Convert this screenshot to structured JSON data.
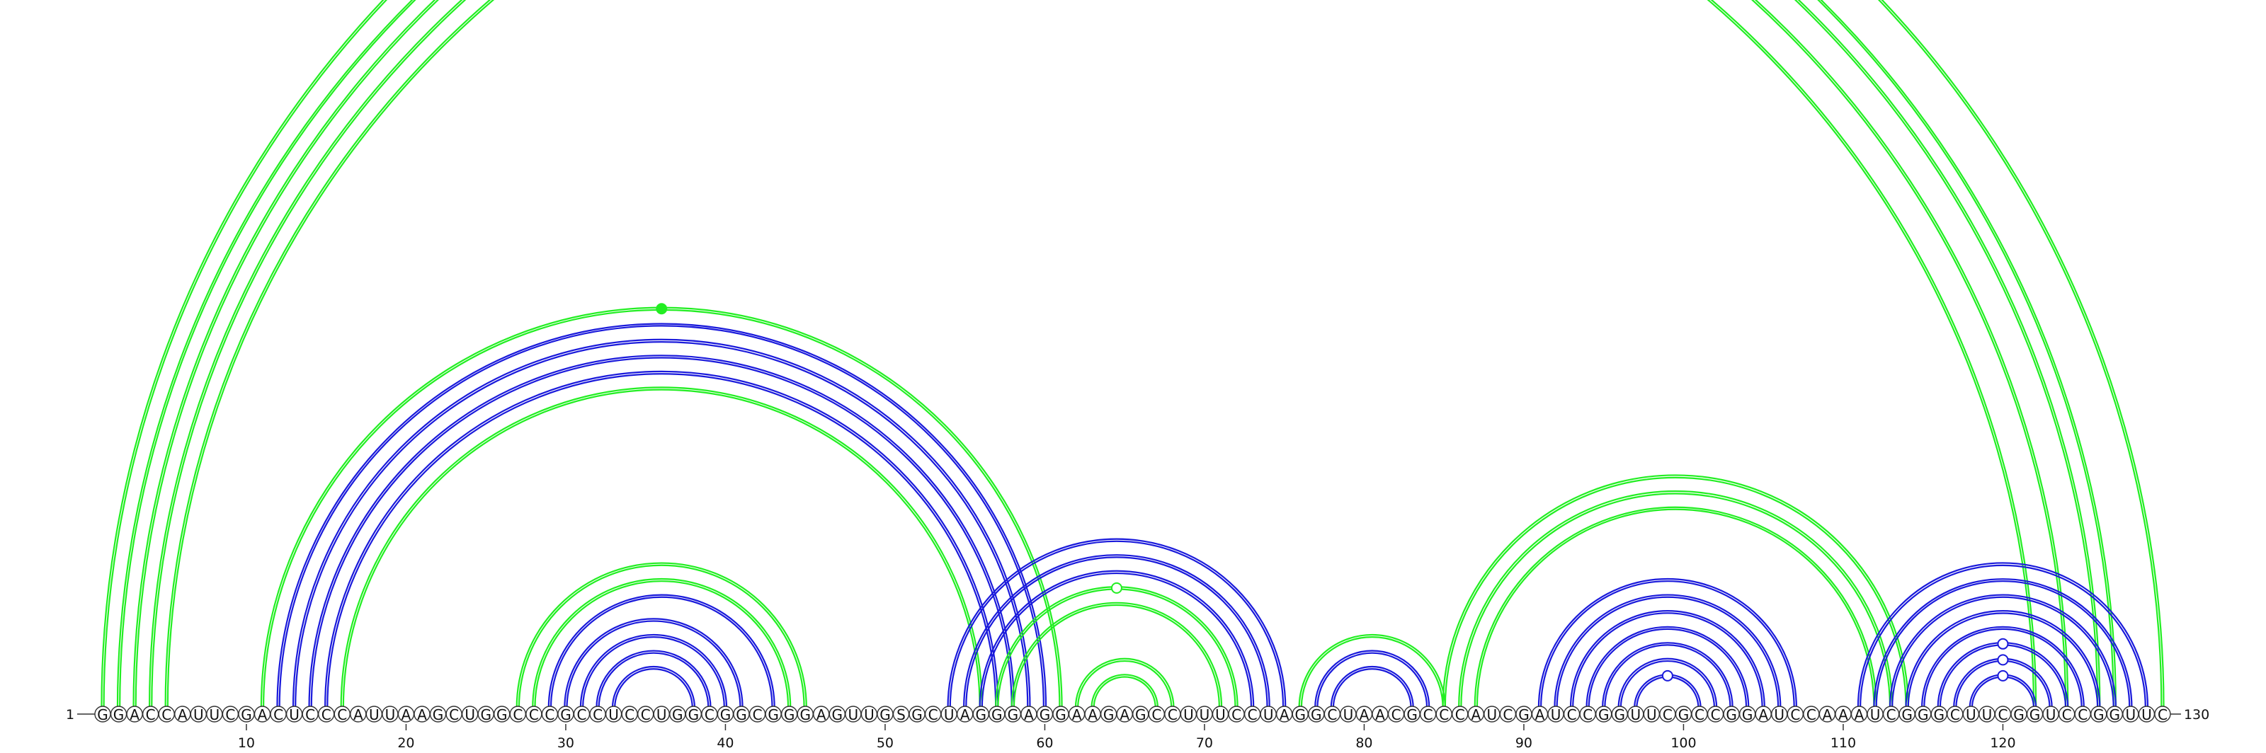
{
  "sequence": "GGACCAUUCGACUCCCAUUAAGCUGGCCCGCCUCCUGGCGGCGGGAGUUGSGCUAGGGAGGAAGAGCCUUUCCUAGGCUAACGCCCAUCGAUCCGGUUCGCCGGAUCCAAAUCGGGCUUCGGUCCGGUUC",
  "start_label": "1",
  "end_label": "130",
  "tick_labels": [
    "10",
    "20",
    "30",
    "40",
    "50",
    "60",
    "70",
    "80",
    "90",
    "100",
    "110",
    "120"
  ],
  "colors": {
    "green": "#22ee22",
    "blue": "#1a1adb"
  },
  "chart_data": {
    "type": "arc-diagram",
    "sequence_length": 130,
    "ticks": [
      10,
      20,
      30,
      40,
      50,
      60,
      70,
      80,
      90,
      100,
      110,
      120
    ],
    "pairs": [
      {
        "i": 1,
        "j": 130,
        "color": "green",
        "style": "double"
      },
      {
        "i": 2,
        "j": 127,
        "color": "green",
        "style": "double"
      },
      {
        "i": 3,
        "j": 126,
        "color": "green",
        "style": "double"
      },
      {
        "i": 4,
        "j": 124,
        "color": "green",
        "style": "double"
      },
      {
        "i": 5,
        "j": 122,
        "color": "green",
        "style": "double"
      },
      {
        "i": 11,
        "j": 61,
        "color": "green",
        "style": "double"
      },
      {
        "i": 12,
        "j": 60,
        "color": "blue",
        "style": "double"
      },
      {
        "i": 13,
        "j": 59,
        "color": "blue",
        "style": "double"
      },
      {
        "i": 14,
        "j": 58,
        "color": "blue",
        "style": "double"
      },
      {
        "i": 15,
        "j": 57,
        "color": "blue",
        "style": "double"
      },
      {
        "i": 16,
        "j": 56,
        "color": "green",
        "style": "double"
      },
      {
        "i": 27,
        "j": 45,
        "color": "green",
        "style": "double"
      },
      {
        "i": 28,
        "j": 44,
        "color": "green",
        "style": "double"
      },
      {
        "i": 29,
        "j": 43,
        "color": "blue",
        "style": "double"
      },
      {
        "i": 30,
        "j": 41,
        "color": "blue",
        "style": "double"
      },
      {
        "i": 31,
        "j": 40,
        "color": "blue",
        "style": "double"
      },
      {
        "i": 32,
        "j": 39,
        "color": "blue",
        "style": "double"
      },
      {
        "i": 33,
        "j": 38,
        "color": "blue",
        "style": "double"
      },
      {
        "i": 54,
        "j": 75,
        "color": "blue",
        "style": "double"
      },
      {
        "i": 55,
        "j": 74,
        "color": "blue",
        "style": "double"
      },
      {
        "i": 56,
        "j": 73,
        "color": "blue",
        "style": "double"
      },
      {
        "i": 57,
        "j": 72,
        "color": "green",
        "style": "double"
      },
      {
        "i": 58,
        "j": 71,
        "color": "green",
        "style": "double"
      },
      {
        "i": 62,
        "j": 68,
        "color": "green",
        "style": "double"
      },
      {
        "i": 63,
        "j": 67,
        "color": "green",
        "style": "double"
      },
      {
        "i": 76,
        "j": 85,
        "color": "green",
        "style": "double"
      },
      {
        "i": 77,
        "j": 84,
        "color": "blue",
        "style": "double"
      },
      {
        "i": 78,
        "j": 83,
        "color": "blue",
        "style": "double"
      },
      {
        "i": 85,
        "j": 114,
        "color": "green",
        "style": "double"
      },
      {
        "i": 86,
        "j": 113,
        "color": "green",
        "style": "double"
      },
      {
        "i": 87,
        "j": 112,
        "color": "green",
        "style": "double"
      },
      {
        "i": 91,
        "j": 107,
        "color": "blue",
        "style": "double"
      },
      {
        "i": 92,
        "j": 106,
        "color": "blue",
        "style": "double"
      },
      {
        "i": 93,
        "j": 105,
        "color": "blue",
        "style": "double"
      },
      {
        "i": 94,
        "j": 104,
        "color": "blue",
        "style": "double"
      },
      {
        "i": 95,
        "j": 103,
        "color": "blue",
        "style": "double"
      },
      {
        "i": 96,
        "j": 102,
        "color": "blue",
        "style": "double"
      },
      {
        "i": 97,
        "j": 101,
        "color": "blue",
        "style": "double"
      },
      {
        "i": 111,
        "j": 129,
        "color": "blue",
        "style": "double"
      },
      {
        "i": 112,
        "j": 128,
        "color": "blue",
        "style": "double"
      },
      {
        "i": 113,
        "j": 127,
        "color": "blue",
        "style": "double"
      },
      {
        "i": 114,
        "j": 126,
        "color": "blue",
        "style": "double"
      },
      {
        "i": 115,
        "j": 125,
        "color": "blue",
        "style": "double"
      },
      {
        "i": 116,
        "j": 124,
        "color": "blue",
        "style": "double"
      },
      {
        "i": 117,
        "j": 123,
        "color": "blue",
        "style": "double"
      },
      {
        "i": 118,
        "j": 122,
        "color": "blue",
        "style": "double"
      }
    ],
    "markers": [
      {
        "i": 11,
        "j": 61,
        "color": "green",
        "filled": true
      },
      {
        "i": 57,
        "j": 72,
        "color": "green",
        "filled": false
      },
      {
        "i": 97,
        "j": 101,
        "color": "blue",
        "filled": false
      },
      {
        "i": 116,
        "j": 124,
        "color": "blue",
        "filled": false
      },
      {
        "i": 117,
        "j": 123,
        "color": "blue",
        "filled": false
      },
      {
        "i": 118,
        "j": 122,
        "color": "blue",
        "filled": false
      }
    ]
  }
}
